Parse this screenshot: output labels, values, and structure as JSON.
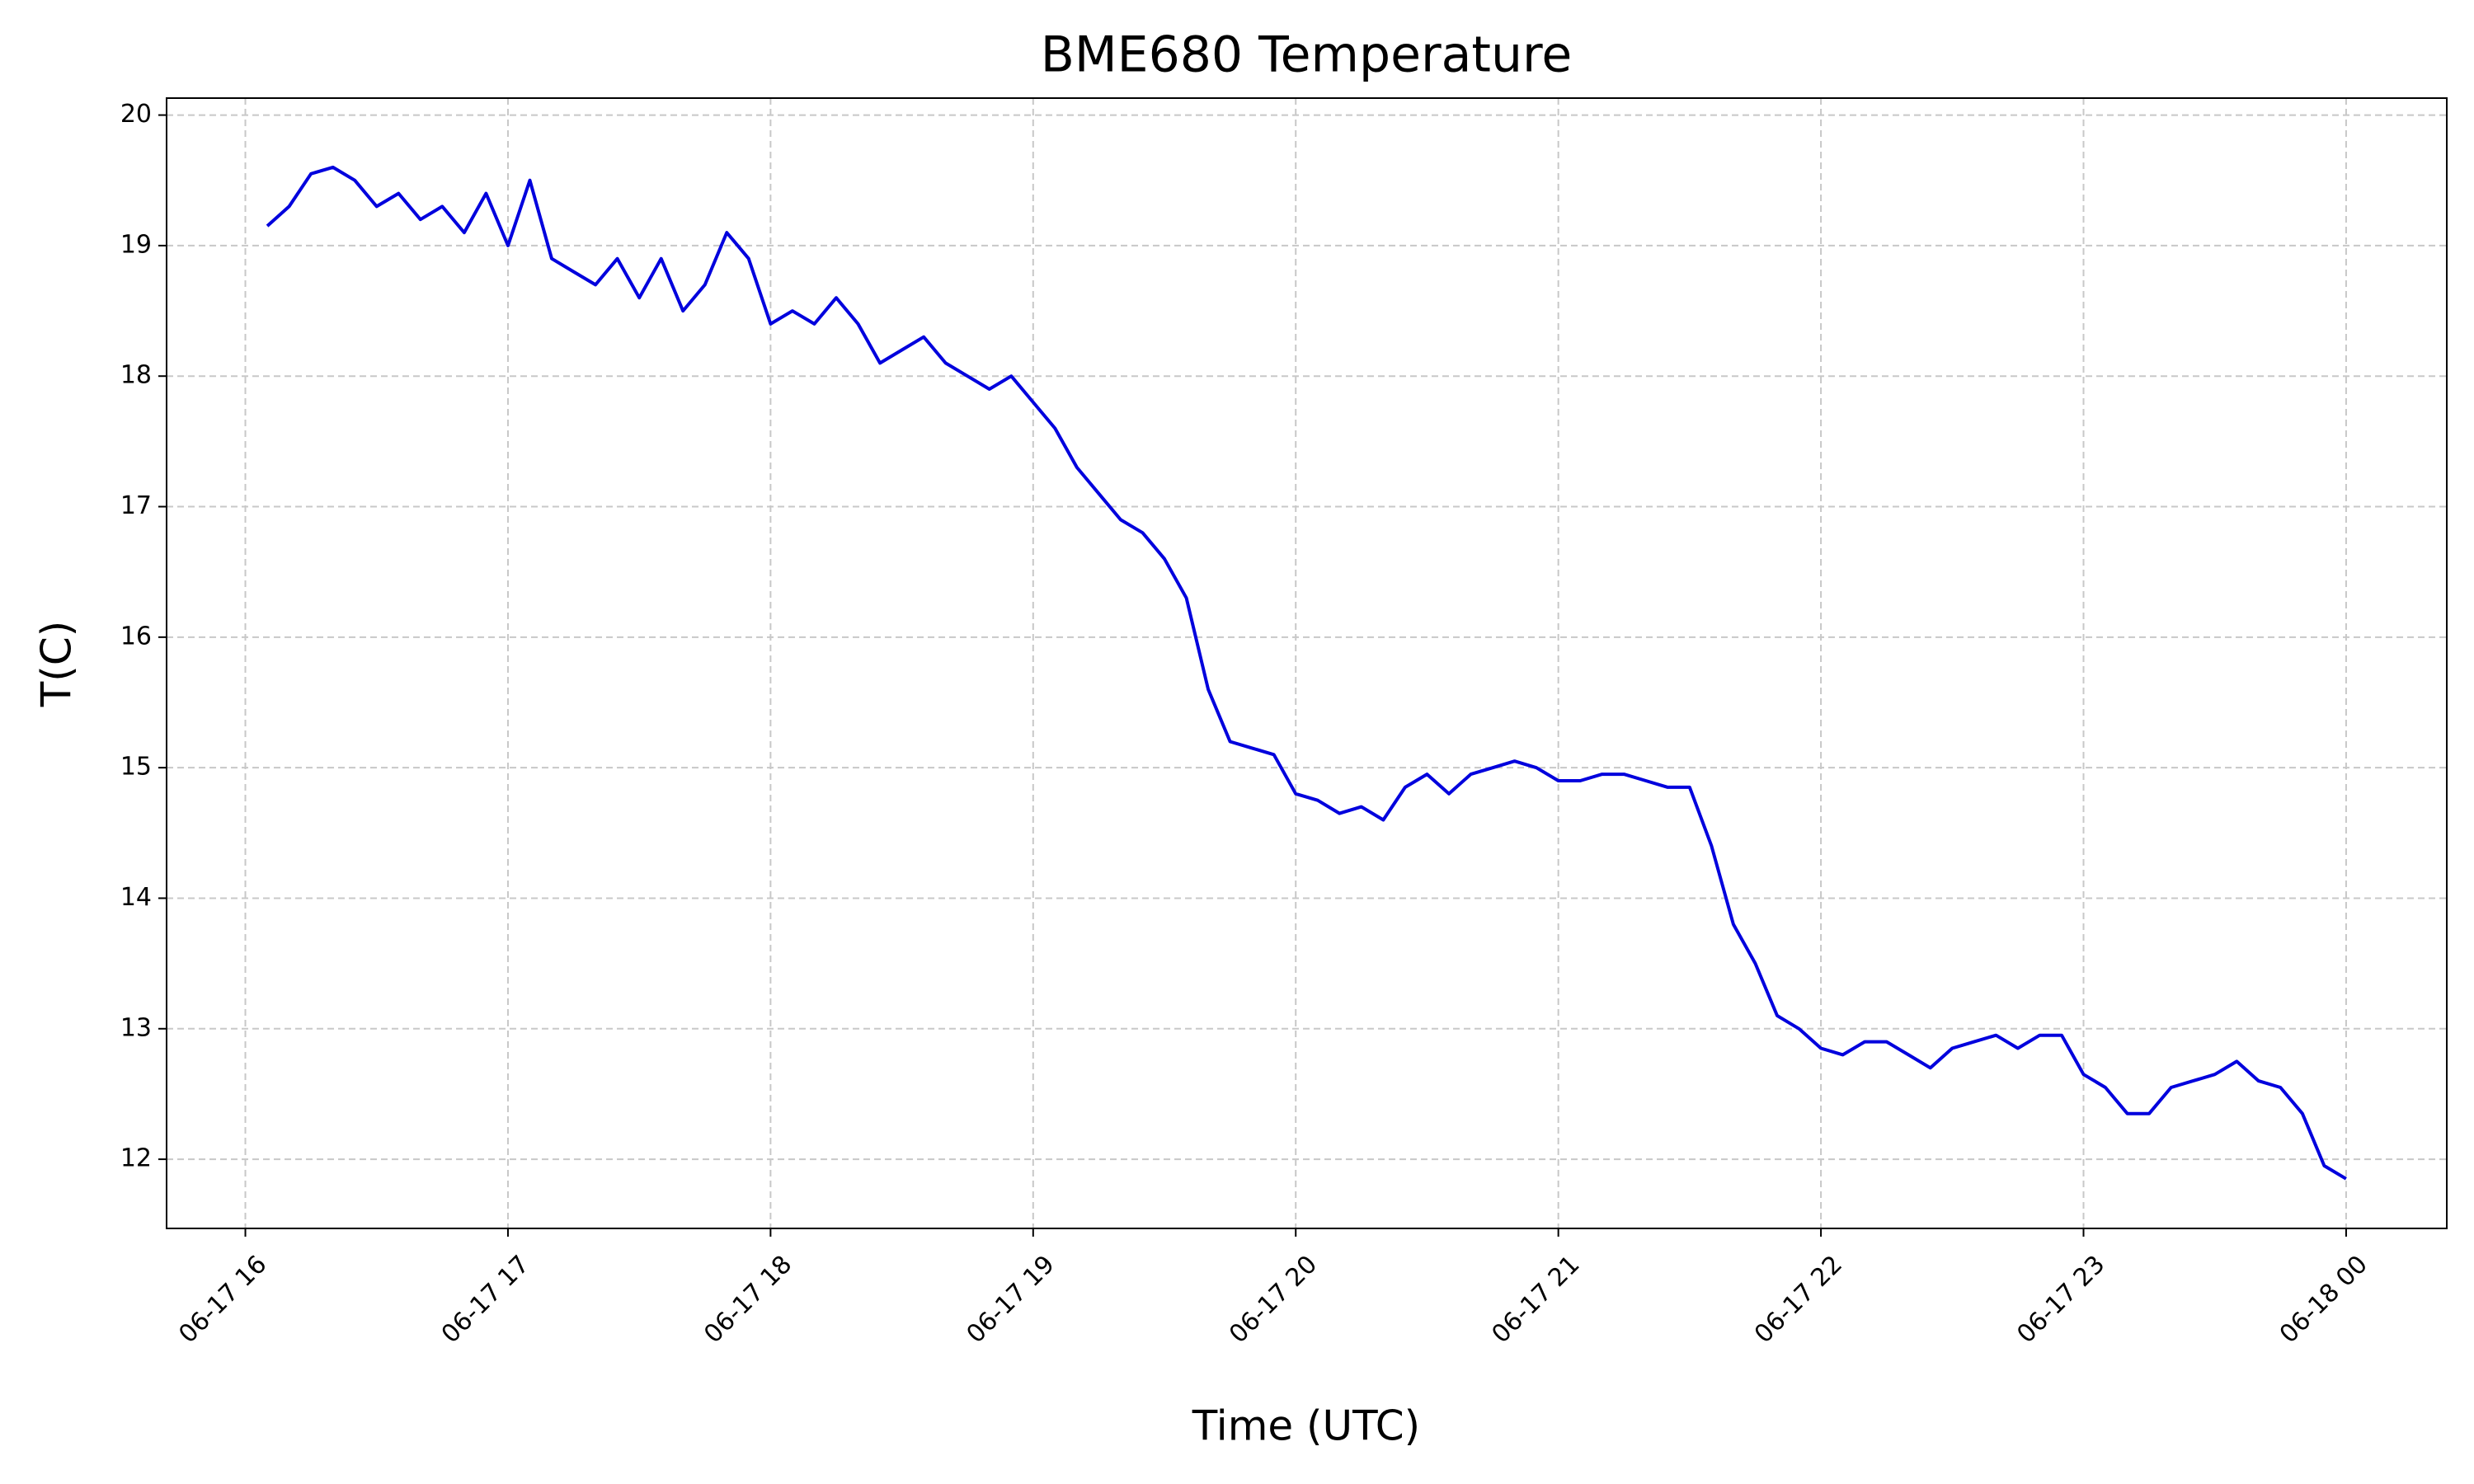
{
  "chart_data": {
    "type": "line",
    "title": "BME680 Temperature",
    "x_label": "Time (UTC)",
    "y_label": "T(C)",
    "x": [
      "06-17 16:05",
      "06-17 16:10",
      "06-17 16:15",
      "06-17 16:20",
      "06-17 16:25",
      "06-17 16:30",
      "06-17 16:35",
      "06-17 16:40",
      "06-17 16:45",
      "06-17 16:50",
      "06-17 16:55",
      "06-17 17:00",
      "06-17 17:05",
      "06-17 17:10",
      "06-17 17:15",
      "06-17 17:20",
      "06-17 17:25",
      "06-17 17:30",
      "06-17 17:35",
      "06-17 17:40",
      "06-17 17:45",
      "06-17 17:50",
      "06-17 17:55",
      "06-17 18:00",
      "06-17 18:05",
      "06-17 18:10",
      "06-17 18:15",
      "06-17 18:20",
      "06-17 18:25",
      "06-17 18:30",
      "06-17 18:35",
      "06-17 18:40",
      "06-17 18:45",
      "06-17 18:50",
      "06-17 18:55",
      "06-17 19:00",
      "06-17 19:05",
      "06-17 19:10",
      "06-17 19:15",
      "06-17 19:20",
      "06-17 19:25",
      "06-17 19:30",
      "06-17 19:35",
      "06-17 19:40",
      "06-17 19:45",
      "06-17 19:50",
      "06-17 19:55",
      "06-17 20:00",
      "06-17 20:05",
      "06-17 20:10",
      "06-17 20:15",
      "06-17 20:20",
      "06-17 20:25",
      "06-17 20:30",
      "06-17 20:35",
      "06-17 20:40",
      "06-17 20:45",
      "06-17 20:50",
      "06-17 20:55",
      "06-17 21:00",
      "06-17 21:05",
      "06-17 21:10",
      "06-17 21:15",
      "06-17 21:20",
      "06-17 21:25",
      "06-17 21:30",
      "06-17 21:35",
      "06-17 21:40",
      "06-17 21:45",
      "06-17 21:50",
      "06-17 21:55",
      "06-17 22:00",
      "06-17 22:05",
      "06-17 22:10",
      "06-17 22:15",
      "06-17 22:20",
      "06-17 22:25",
      "06-17 22:30",
      "06-17 22:35",
      "06-17 22:40",
      "06-17 22:45",
      "06-17 22:50",
      "06-17 22:55",
      "06-17 23:00",
      "06-17 23:05",
      "06-17 23:10",
      "06-17 23:15",
      "06-17 23:20",
      "06-17 23:25",
      "06-17 23:30",
      "06-17 23:35",
      "06-17 23:40",
      "06-17 23:45",
      "06-17 23:50",
      "06-17 23:55",
      "06-18 00:00"
    ],
    "series": [
      {
        "name": "T(C)",
        "color": "#0000dd",
        "values": [
          19.15,
          19.3,
          19.55,
          19.6,
          19.5,
          19.3,
          19.4,
          19.2,
          19.3,
          19.1,
          19.4,
          19.0,
          19.5,
          18.9,
          18.8,
          18.7,
          18.9,
          18.6,
          18.9,
          18.5,
          18.7,
          19.1,
          18.9,
          18.4,
          18.5,
          18.4,
          18.6,
          18.4,
          18.1,
          18.2,
          18.3,
          18.1,
          18.0,
          17.9,
          18.0,
          17.8,
          17.6,
          17.3,
          17.1,
          16.9,
          16.8,
          16.6,
          16.3,
          15.6,
          15.2,
          15.15,
          15.1,
          14.8,
          14.75,
          14.65,
          14.7,
          14.6,
          14.85,
          14.95,
          14.8,
          14.95,
          15.0,
          15.05,
          15.0,
          14.9,
          14.9,
          14.95,
          14.95,
          14.9,
          14.85,
          14.85,
          14.4,
          13.8,
          13.5,
          13.1,
          13.0,
          12.85,
          12.8,
          12.9,
          12.9,
          12.8,
          12.7,
          12.85,
          12.9,
          12.95,
          12.85,
          12.95,
          12.95,
          12.65,
          12.55,
          12.35,
          12.35,
          12.55,
          12.6,
          12.65,
          12.75,
          12.6,
          12.55,
          12.35,
          11.95,
          11.85
        ]
      }
    ],
    "xlim": [
      "06-17 15:42",
      "06-18 00:23"
    ],
    "xticks": [
      {
        "value": "06-17 16:00",
        "label": "06-17 16"
      },
      {
        "value": "06-17 17:00",
        "label": "06-17 17"
      },
      {
        "value": "06-17 18:00",
        "label": "06-17 18"
      },
      {
        "value": "06-17 19:00",
        "label": "06-17 19"
      },
      {
        "value": "06-17 20:00",
        "label": "06-17 20"
      },
      {
        "value": "06-17 21:00",
        "label": "06-17 21"
      },
      {
        "value": "06-17 22:00",
        "label": "06-17 22"
      },
      {
        "value": "06-17 23:00",
        "label": "06-17 23"
      },
      {
        "value": "06-18 00:00",
        "label": "06-18 00"
      }
    ],
    "ylim": [
      11.47,
      20.13
    ],
    "yticks": [
      12,
      13,
      14,
      15,
      16,
      17,
      18,
      19,
      20
    ],
    "grid": true
  }
}
